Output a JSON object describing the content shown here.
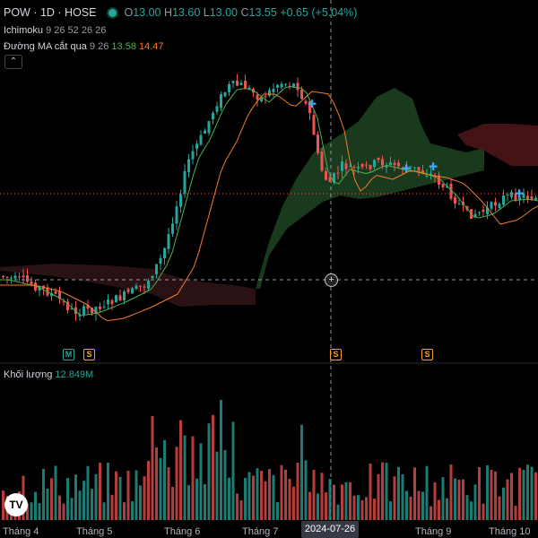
{
  "header": {
    "symbol": "POW · 1D · HOSE",
    "open_label": "O",
    "open": "13.00",
    "high_label": "H",
    "high": "13.60",
    "low_label": "L",
    "low": "13.00",
    "close_label": "C",
    "close": "13.55",
    "change": "+0.65 (+5.04%)"
  },
  "indicators": [
    {
      "name": "Ichimoku",
      "params": "9 26 52 26 26"
    },
    {
      "name": "Đường MA cắt qua",
      "params": "9 26",
      "val1": "13.58",
      "val2": "14.47"
    }
  ],
  "collapse_icon": "chevron-up-icon",
  "volume": {
    "label": "Khối lượng",
    "value": "12.849M"
  },
  "markers": [
    {
      "letter": "M",
      "kind": "m"
    },
    {
      "letter": "S",
      "kind": "s"
    },
    {
      "letter": "S",
      "kind": "s"
    },
    {
      "letter": "S",
      "kind": "s"
    }
  ],
  "xaxis": {
    "labels": [
      "Tháng 4",
      "Tháng 5",
      "Tháng 6",
      "Tháng 7",
      "Tháng 9",
      "Tháng 10"
    ],
    "crosshair_date": "2024-07-26"
  },
  "logo_text": "TV",
  "colors": {
    "up": "#26a69a",
    "down": "#ef5350",
    "ma_fast": "#4caf50",
    "ma_slow": "#f57c28",
    "cloud_bull": "#1b3d1f",
    "cloud_bear": "#4a1517"
  }
}
